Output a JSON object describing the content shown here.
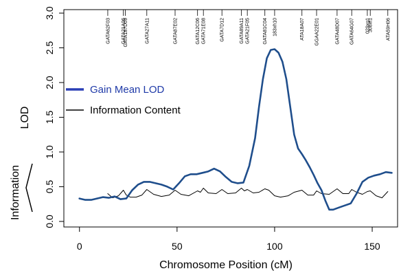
{
  "chart_data": {
    "type": "line",
    "title": "",
    "xlabel": "Chromosome Position (cM)",
    "ylabel": "LOD",
    "ylabel_secondary": "Information",
    "xlim": [
      -8,
      163
    ],
    "ylim": [
      -0.08,
      3.05
    ],
    "x_ticks": [
      "0",
      "50",
      "100",
      "150"
    ],
    "y_ticks": [
      "0.0",
      "0.5",
      "1.0",
      "1.5",
      "2.0",
      "2.5",
      "3.0"
    ],
    "grid": false,
    "legend_position": "left-middle",
    "markers": [
      {
        "label": "GATA62F03",
        "position": 14.5
      },
      {
        "label": "GATA21A06",
        "position": 22.5
      },
      {
        "label": "GATA187D09",
        "position": 23.5
      },
      {
        "label": "GATA27A11",
        "position": 34.5
      },
      {
        "label": "GATA87E02",
        "position": 49
      },
      {
        "label": "GATA12C06",
        "position": 60.5
      },
      {
        "label": "GATA71E08",
        "position": 63.5
      },
      {
        "label": "GATA7D12",
        "position": 73
      },
      {
        "label": "GATA89A11",
        "position": 83
      },
      {
        "label": "GATA21F05",
        "position": 86
      },
      {
        "label": "GATA81C04",
        "position": 95
      },
      {
        "label": "183xh10",
        "position": 100
      },
      {
        "label": "ATA18A07",
        "position": 114
      },
      {
        "label": "GGAA22E01",
        "position": 121.5
      },
      {
        "label": "GATA48D07",
        "position": 132
      },
      {
        "label": "GATA64G07",
        "position": 139.5
      },
      {
        "label": "029xg1",
        "position": 147.5
      },
      {
        "label": "308xf1",
        "position": 149
      },
      {
        "label": "ATA59H06",
        "position": 158
      }
    ],
    "series": [
      {
        "name": "Gain Mean LOD",
        "color": "#1f4e8c",
        "x": [
          0,
          3,
          6,
          9,
          12,
          15,
          18,
          21,
          24,
          27,
          30,
          33,
          36,
          39,
          42,
          45,
          48,
          51,
          54,
          57,
          60,
          63,
          66,
          69,
          72,
          75,
          78,
          81,
          84,
          87,
          90,
          92,
          94,
          96,
          98,
          100,
          102,
          104,
          106,
          108,
          110,
          112,
          114,
          116,
          118,
          120,
          122,
          124,
          126,
          128,
          130,
          133,
          136,
          139,
          142,
          145,
          148,
          151,
          154,
          157,
          160
        ],
        "values": [
          0.33,
          0.31,
          0.31,
          0.33,
          0.35,
          0.34,
          0.36,
          0.32,
          0.33,
          0.45,
          0.53,
          0.57,
          0.57,
          0.55,
          0.53,
          0.5,
          0.46,
          0.55,
          0.65,
          0.68,
          0.68,
          0.7,
          0.72,
          0.76,
          0.72,
          0.64,
          0.57,
          0.55,
          0.56,
          0.8,
          1.2,
          1.65,
          2.05,
          2.35,
          2.47,
          2.48,
          2.43,
          2.3,
          2.05,
          1.65,
          1.25,
          1.05,
          0.97,
          0.88,
          0.78,
          0.67,
          0.55,
          0.45,
          0.3,
          0.17,
          0.17,
          0.2,
          0.23,
          0.26,
          0.4,
          0.57,
          0.63,
          0.66,
          0.68,
          0.71,
          0.7
        ]
      },
      {
        "name": "Information Content",
        "color": "#000000",
        "x": [
          14.5,
          17,
          20,
          22.5,
          24,
          26,
          29,
          32,
          34.5,
          38,
          42,
          46,
          49,
          52,
          56,
          60.5,
          62,
          63.5,
          66,
          70,
          73,
          76,
          80,
          83,
          84.5,
          86,
          89,
          92,
          95,
          97,
          100,
          103,
          107,
          110,
          114,
          117,
          120,
          121.5,
          124,
          128,
          132,
          135,
          138,
          139.5,
          142,
          145,
          147.5,
          149,
          152,
          155,
          158
        ],
        "values": [
          0.4,
          0.34,
          0.37,
          0.45,
          0.38,
          0.35,
          0.35,
          0.38,
          0.46,
          0.39,
          0.36,
          0.38,
          0.45,
          0.39,
          0.37,
          0.44,
          0.42,
          0.48,
          0.41,
          0.4,
          0.46,
          0.4,
          0.41,
          0.48,
          0.44,
          0.46,
          0.41,
          0.42,
          0.47,
          0.45,
          0.37,
          0.35,
          0.37,
          0.42,
          0.45,
          0.38,
          0.38,
          0.44,
          0.4,
          0.39,
          0.47,
          0.4,
          0.4,
          0.46,
          0.42,
          0.39,
          0.43,
          0.44,
          0.37,
          0.34,
          0.43
        ]
      }
    ]
  }
}
